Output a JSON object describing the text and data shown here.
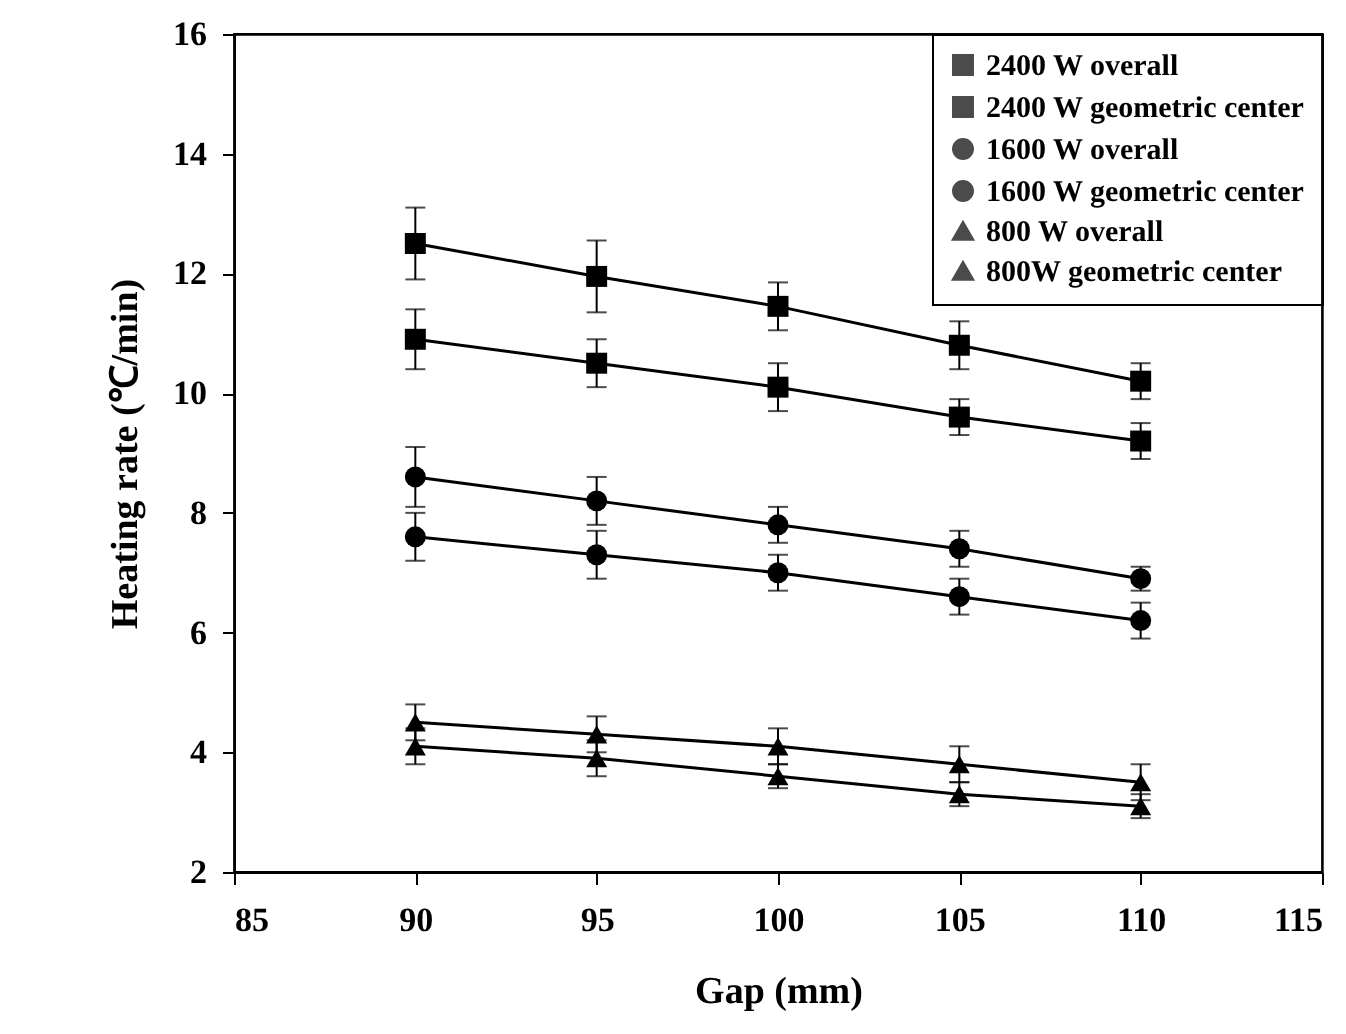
{
  "chart_data": {
    "type": "line",
    "xlabel": "Gap (mm)",
    "ylabel": "Heating rate (℃/min)",
    "x": [
      90,
      95,
      100,
      105,
      110
    ],
    "xlim": [
      85,
      115
    ],
    "xticks": [
      85,
      90,
      95,
      100,
      105,
      110,
      115
    ],
    "ylim": [
      2,
      16
    ],
    "yticks": [
      2,
      4,
      6,
      8,
      10,
      12,
      14,
      16
    ],
    "grid": false,
    "legend": "top right",
    "line_style": "solid",
    "series": [
      {
        "name": "2400 W overall",
        "color": "#000000",
        "marker": "square",
        "values": [
          12.5,
          11.95,
          11.45,
          10.8,
          10.2
        ],
        "errors": [
          0.6,
          0.6,
          0.4,
          0.4,
          0.3
        ]
      },
      {
        "name": "2400 W geometric center",
        "color": "#000000",
        "marker": "square",
        "values": [
          10.9,
          10.5,
          10.1,
          9.6,
          9.2
        ],
        "errors": [
          0.5,
          0.4,
          0.4,
          0.3,
          0.3
        ]
      },
      {
        "name": "1600 W overall",
        "color": "#000000",
        "marker": "circle",
        "values": [
          8.6,
          8.2,
          7.8,
          7.4,
          6.9
        ],
        "errors": [
          0.5,
          0.4,
          0.3,
          0.3,
          0.2
        ]
      },
      {
        "name": "1600 W geometric center",
        "color": "#000000",
        "marker": "circle",
        "values": [
          7.6,
          7.3,
          7.0,
          6.6,
          6.2
        ],
        "errors": [
          0.4,
          0.4,
          0.3,
          0.3,
          0.3
        ]
      },
      {
        "name": "800 W overall",
        "color": "#000000",
        "marker": "triangle",
        "values": [
          4.5,
          4.3,
          4.1,
          3.8,
          3.5
        ],
        "errors": [
          0.3,
          0.3,
          0.3,
          0.3,
          0.3
        ]
      },
      {
        "name": "800W geometric center",
        "color": "#000000",
        "marker": "triangle",
        "values": [
          4.1,
          3.9,
          3.6,
          3.3,
          3.1
        ],
        "errors": [
          0.3,
          0.3,
          0.2,
          0.2,
          0.2
        ]
      }
    ]
  }
}
